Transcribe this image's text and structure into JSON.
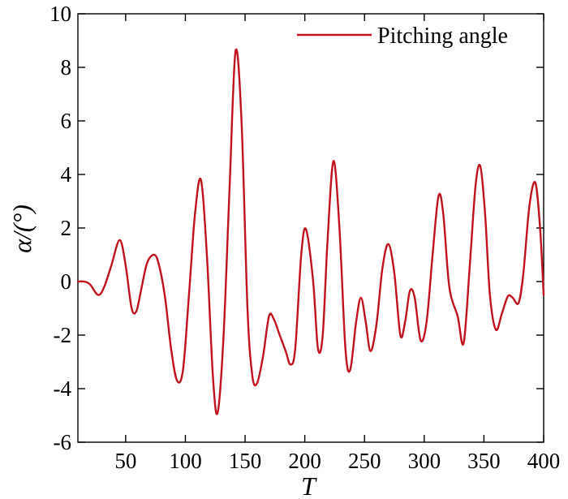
{
  "chart_data": {
    "type": "line",
    "xlabel": "T",
    "ylabel": "α/(°)",
    "xlim": [
      10,
      400
    ],
    "ylim": [
      -6,
      10
    ],
    "xticks": [
      50,
      100,
      150,
      200,
      250,
      300,
      350,
      400
    ],
    "yticks": [
      -6,
      -4,
      -2,
      0,
      2,
      4,
      6,
      8,
      10
    ],
    "grid": false,
    "legend_position": "top-right",
    "colors": {
      "series": "#c0121c",
      "axis": "#000000"
    },
    "series": [
      {
        "name": "Pitching angle",
        "x": [
          10,
          15,
          20,
          27,
          32,
          38,
          45,
          50,
          55,
          59,
          63,
          68,
          74,
          78,
          83,
          88,
          93,
          98,
          103,
          108,
          113,
          118,
          123,
          127,
          132,
          137,
          142,
          147,
          152,
          156,
          160,
          165,
          170,
          174,
          179,
          184,
          188,
          192,
          197,
          201,
          207,
          211,
          215,
          219,
          224,
          229,
          234,
          238,
          243,
          247,
          251,
          255,
          260,
          265,
          270,
          275,
          280,
          284,
          288,
          292,
          297,
          302,
          307,
          312,
          316,
          321,
          328,
          333,
          338,
          343,
          347,
          351,
          355,
          360,
          365,
          370,
          374,
          379,
          383,
          388,
          393,
          397,
          400
        ],
        "y": [
          0,
          0,
          -0.1,
          -0.5,
          -0.2,
          0.6,
          1.55,
          0.6,
          -1.0,
          -1.1,
          -0.3,
          0.7,
          1.0,
          0.6,
          -0.6,
          -2.5,
          -3.7,
          -3.3,
          -0.5,
          2.5,
          3.8,
          1.0,
          -3.5,
          -4.9,
          -2.0,
          3.5,
          8.6,
          6.0,
          -1.0,
          -3.5,
          -3.8,
          -2.8,
          -1.3,
          -1.4,
          -2.0,
          -2.6,
          -3.1,
          -2.5,
          1.0,
          1.95,
          0.0,
          -2.5,
          -2.0,
          1.5,
          4.5,
          2.0,
          -2.5,
          -3.3,
          -1.5,
          -0.6,
          -1.5,
          -2.6,
          -1.6,
          0.5,
          1.4,
          0.3,
          -2.0,
          -1.5,
          -0.35,
          -0.6,
          -2.2,
          -1.5,
          1.0,
          3.2,
          2.5,
          -0.2,
          -1.3,
          -2.3,
          0.5,
          3.6,
          4.3,
          2.5,
          -0.5,
          -1.8,
          -1.2,
          -0.55,
          -0.6,
          -0.8,
          0.3,
          2.8,
          3.7,
          2.0,
          -0.5
        ]
      }
    ]
  }
}
